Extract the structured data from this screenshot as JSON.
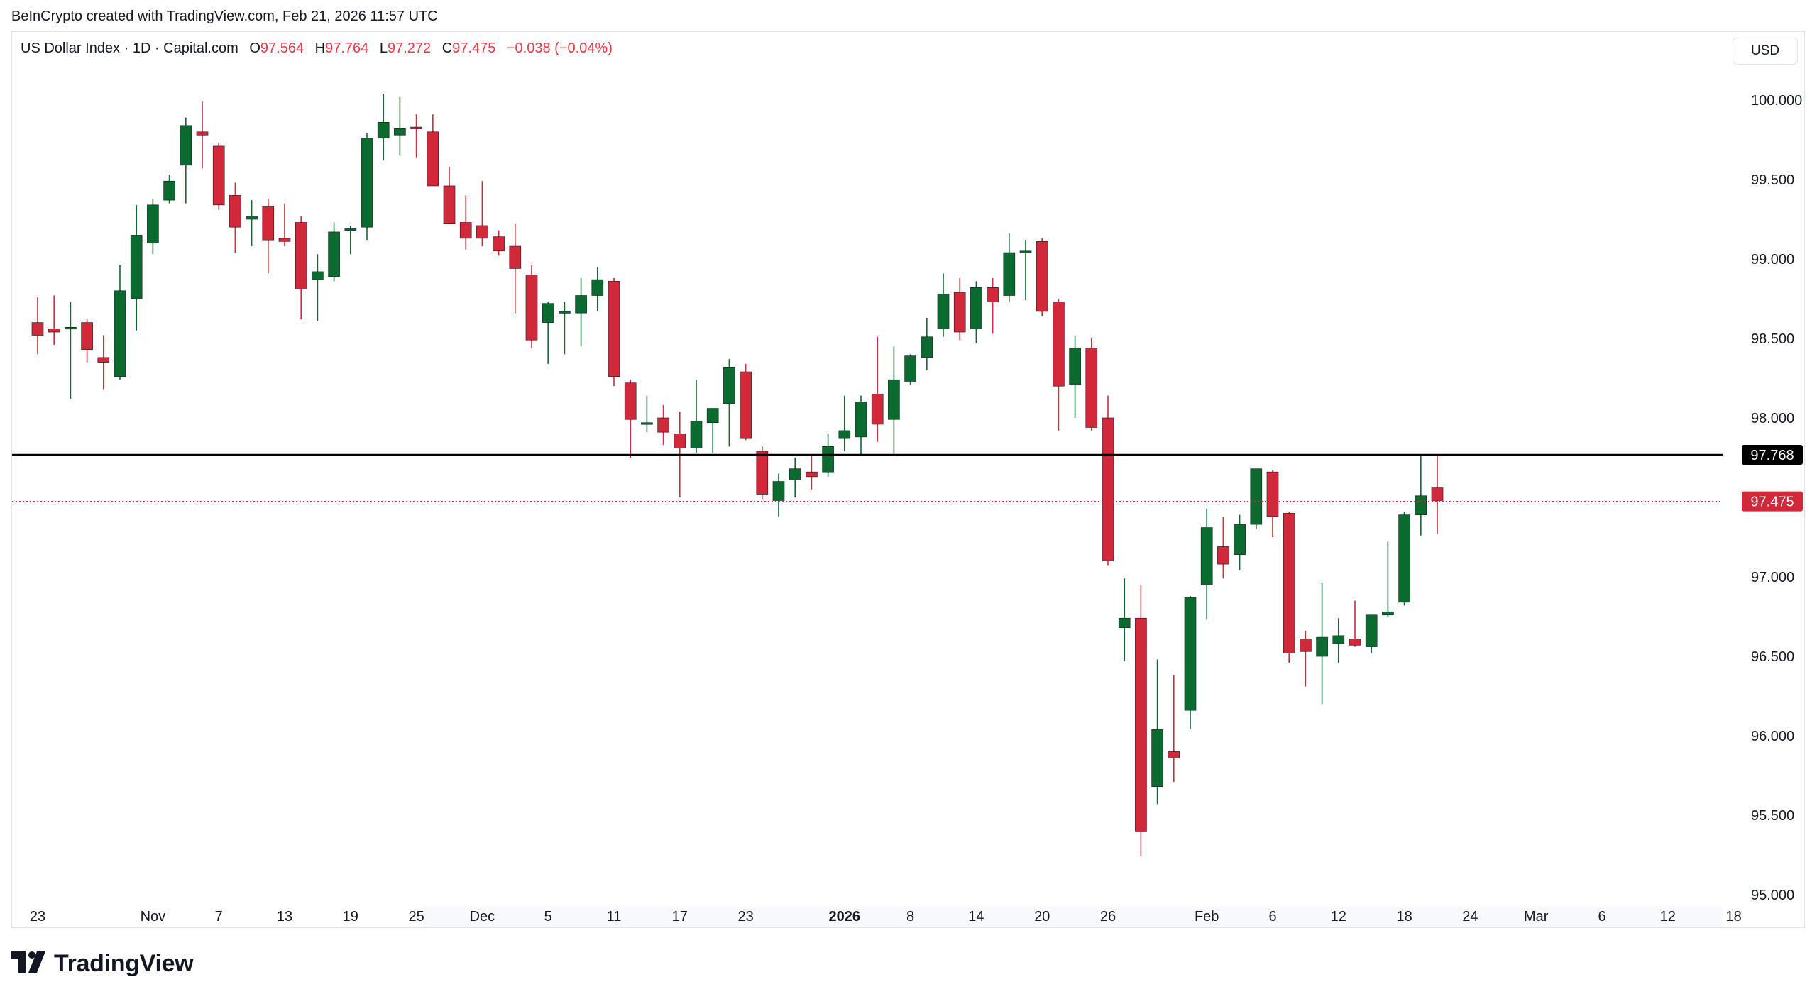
{
  "credit": "BeInCrypto created with TradingView.com, Feb 21, 2026 11:57 UTC",
  "legend": {
    "symbol": "US Dollar Index · 1D · Capital.com",
    "open_label": "O",
    "open": "97.564",
    "high_label": "H",
    "high": "97.764",
    "low_label": "L",
    "low": "97.272",
    "close_label": "C",
    "close": "97.475",
    "change": "−0.038 (−0.04%)"
  },
  "currency_button": "USD",
  "brand": {
    "name": "TradingView",
    "icon": "tradingview-logo-icon"
  },
  "colors": {
    "up": "#0b6b2f",
    "down": "#d1283a",
    "line": "#000000",
    "last_price": "#d1283a",
    "axis_text": "#131722"
  },
  "chart_data": {
    "type": "candlestick",
    "title": "US Dollar Index · 1D · Capital.com",
    "ylabel": "",
    "xlabel": "",
    "ylim": [
      94.6,
      100.5
    ],
    "grid": false,
    "y_ticks": [
      "100.000",
      "99.500",
      "99.000",
      "98.500",
      "98.000",
      "97.000",
      "96.500",
      "96.000",
      "95.500",
      "95.000"
    ],
    "x_ticks": [
      {
        "label": "23",
        "index": 0
      },
      {
        "label": "Nov",
        "index": 7
      },
      {
        "label": "7",
        "index": 11
      },
      {
        "label": "13",
        "index": 15
      },
      {
        "label": "19",
        "index": 19
      },
      {
        "label": "25",
        "index": 23
      },
      {
        "label": "Dec",
        "index": 27
      },
      {
        "label": "5",
        "index": 31
      },
      {
        "label": "11",
        "index": 35
      },
      {
        "label": "17",
        "index": 39
      },
      {
        "label": "23",
        "index": 43
      },
      {
        "label": "2026",
        "index": 49,
        "bold": true
      },
      {
        "label": "8",
        "index": 53
      },
      {
        "label": "14",
        "index": 57
      },
      {
        "label": "20",
        "index": 61
      },
      {
        "label": "26",
        "index": 65
      },
      {
        "label": "Feb",
        "index": 71
      },
      {
        "label": "6",
        "index": 75
      },
      {
        "label": "12",
        "index": 79
      },
      {
        "label": "18",
        "index": 83
      },
      {
        "label": "24",
        "index": 87
      },
      {
        "label": "Mar",
        "index": 91
      },
      {
        "label": "6",
        "index": 95
      },
      {
        "label": "12",
        "index": 99
      },
      {
        "label": "18",
        "index": 103
      }
    ],
    "candles": [
      {
        "o": 98.6,
        "h": 98.76,
        "l": 98.4,
        "c": 98.52
      },
      {
        "o": 98.56,
        "h": 98.77,
        "l": 98.46,
        "c": 98.54
      },
      {
        "o": 98.56,
        "h": 98.73,
        "l": 98.12,
        "c": 98.57
      },
      {
        "o": 98.6,
        "h": 98.62,
        "l": 98.35,
        "c": 98.43
      },
      {
        "o": 98.38,
        "h": 98.52,
        "l": 98.18,
        "c": 98.35
      },
      {
        "o": 98.26,
        "h": 98.96,
        "l": 98.24,
        "c": 98.8
      },
      {
        "o": 98.75,
        "h": 99.34,
        "l": 98.55,
        "c": 99.15
      },
      {
        "o": 99.1,
        "h": 99.38,
        "l": 99.03,
        "c": 99.34
      },
      {
        "o": 99.37,
        "h": 99.53,
        "l": 99.35,
        "c": 99.49
      },
      {
        "o": 99.59,
        "h": 99.89,
        "l": 99.35,
        "c": 99.84
      },
      {
        "o": 99.8,
        "h": 99.99,
        "l": 99.57,
        "c": 99.78
      },
      {
        "o": 99.71,
        "h": 99.73,
        "l": 99.31,
        "c": 99.34
      },
      {
        "o": 99.4,
        "h": 99.48,
        "l": 99.04,
        "c": 99.2
      },
      {
        "o": 99.25,
        "h": 99.37,
        "l": 99.08,
        "c": 99.27
      },
      {
        "o": 99.33,
        "h": 99.38,
        "l": 98.91,
        "c": 99.12
      },
      {
        "o": 99.13,
        "h": 99.35,
        "l": 99.08,
        "c": 99.11
      },
      {
        "o": 99.23,
        "h": 99.27,
        "l": 98.62,
        "c": 98.81
      },
      {
        "o": 98.87,
        "h": 99.03,
        "l": 98.61,
        "c": 98.92
      },
      {
        "o": 98.89,
        "h": 99.23,
        "l": 98.86,
        "c": 99.17
      },
      {
        "o": 99.18,
        "h": 99.21,
        "l": 99.03,
        "c": 99.19
      },
      {
        "o": 99.2,
        "h": 99.79,
        "l": 99.12,
        "c": 99.76
      },
      {
        "o": 99.76,
        "h": 100.04,
        "l": 99.62,
        "c": 99.86
      },
      {
        "o": 99.78,
        "h": 100.02,
        "l": 99.65,
        "c": 99.82
      },
      {
        "o": 99.83,
        "h": 99.91,
        "l": 99.64,
        "c": 99.82
      },
      {
        "o": 99.8,
        "h": 99.91,
        "l": 99.46,
        "c": 99.46
      },
      {
        "o": 99.46,
        "h": 99.58,
        "l": 99.27,
        "c": 99.22
      },
      {
        "o": 99.23,
        "h": 99.4,
        "l": 99.06,
        "c": 99.13
      },
      {
        "o": 99.21,
        "h": 99.49,
        "l": 99.08,
        "c": 99.13
      },
      {
        "o": 99.14,
        "h": 99.18,
        "l": 99.02,
        "c": 99.05
      },
      {
        "o": 99.08,
        "h": 99.22,
        "l": 98.66,
        "c": 98.94
      },
      {
        "o": 98.9,
        "h": 98.96,
        "l": 98.44,
        "c": 98.49
      },
      {
        "o": 98.6,
        "h": 98.73,
        "l": 98.34,
        "c": 98.72
      },
      {
        "o": 98.66,
        "h": 98.73,
        "l": 98.4,
        "c": 98.67
      },
      {
        "o": 98.66,
        "h": 98.88,
        "l": 98.45,
        "c": 98.77
      },
      {
        "o": 98.77,
        "h": 98.95,
        "l": 98.67,
        "c": 98.87
      },
      {
        "o": 98.86,
        "h": 98.88,
        "l": 98.2,
        "c": 98.26
      },
      {
        "o": 98.22,
        "h": 98.24,
        "l": 97.75,
        "c": 97.99
      },
      {
        "o": 97.96,
        "h": 98.14,
        "l": 97.91,
        "c": 97.97
      },
      {
        "o": 98.0,
        "h": 98.08,
        "l": 97.83,
        "c": 97.91
      },
      {
        "o": 97.9,
        "h": 98.04,
        "l": 97.5,
        "c": 97.81
      },
      {
        "o": 97.81,
        "h": 98.24,
        "l": 97.78,
        "c": 97.98
      },
      {
        "o": 97.97,
        "h": 98.04,
        "l": 97.78,
        "c": 98.06
      },
      {
        "o": 98.09,
        "h": 98.37,
        "l": 97.82,
        "c": 98.32
      },
      {
        "o": 98.29,
        "h": 98.34,
        "l": 97.86,
        "c": 97.87
      },
      {
        "o": 97.79,
        "h": 97.82,
        "l": 97.49,
        "c": 97.52
      },
      {
        "o": 97.48,
        "h": 97.65,
        "l": 97.38,
        "c": 97.6
      },
      {
        "o": 97.61,
        "h": 97.75,
        "l": 97.5,
        "c": 97.68
      },
      {
        "o": 97.66,
        "h": 97.77,
        "l": 97.55,
        "c": 97.63
      },
      {
        "o": 97.66,
        "h": 97.9,
        "l": 97.63,
        "c": 97.82
      },
      {
        "o": 97.87,
        "h": 98.14,
        "l": 97.79,
        "c": 97.92
      },
      {
        "o": 97.88,
        "h": 98.14,
        "l": 97.77,
        "c": 98.1
      },
      {
        "o": 98.15,
        "h": 98.51,
        "l": 97.85,
        "c": 97.96
      },
      {
        "o": 97.99,
        "h": 98.45,
        "l": 97.76,
        "c": 98.24
      },
      {
        "o": 98.23,
        "h": 98.4,
        "l": 98.21,
        "c": 98.39
      },
      {
        "o": 98.38,
        "h": 98.63,
        "l": 98.3,
        "c": 98.51
      },
      {
        "o": 98.56,
        "h": 98.91,
        "l": 98.51,
        "c": 98.78
      },
      {
        "o": 98.79,
        "h": 98.88,
        "l": 98.49,
        "c": 98.54
      },
      {
        "o": 98.56,
        "h": 98.86,
        "l": 98.47,
        "c": 98.82
      },
      {
        "o": 98.82,
        "h": 98.88,
        "l": 98.53,
        "c": 98.73
      },
      {
        "o": 98.77,
        "h": 99.16,
        "l": 98.73,
        "c": 99.04
      },
      {
        "o": 99.05,
        "h": 99.12,
        "l": 98.74,
        "c": 99.05
      },
      {
        "o": 99.11,
        "h": 99.13,
        "l": 98.64,
        "c": 98.67
      },
      {
        "o": 98.73,
        "h": 98.75,
        "l": 97.92,
        "c": 98.2
      },
      {
        "o": 98.21,
        "h": 98.52,
        "l": 98.0,
        "c": 98.44
      },
      {
        "o": 98.44,
        "h": 98.5,
        "l": 97.92,
        "c": 97.94
      },
      {
        "o": 98.0,
        "h": 98.14,
        "l": 97.07,
        "c": 97.1
      },
      {
        "o": 96.68,
        "h": 96.99,
        "l": 96.47,
        "c": 96.74
      },
      {
        "o": 96.74,
        "h": 96.95,
        "l": 95.24,
        "c": 95.4
      },
      {
        "o": 95.68,
        "h": 96.48,
        "l": 95.57,
        "c": 96.04
      },
      {
        "o": 95.9,
        "h": 96.38,
        "l": 95.71,
        "c": 95.86
      },
      {
        "o": 96.16,
        "h": 96.88,
        "l": 96.04,
        "c": 96.87
      },
      {
        "o": 96.95,
        "h": 97.43,
        "l": 96.73,
        "c": 97.31
      },
      {
        "o": 97.19,
        "h": 97.38,
        "l": 96.99,
        "c": 97.08
      },
      {
        "o": 97.14,
        "h": 97.39,
        "l": 97.04,
        "c": 97.33
      },
      {
        "o": 97.33,
        "h": 97.68,
        "l": 97.3,
        "c": 97.68
      },
      {
        "o": 97.66,
        "h": 97.67,
        "l": 97.25,
        "c": 97.38
      },
      {
        "o": 97.4,
        "h": 97.41,
        "l": 96.46,
        "c": 96.52
      },
      {
        "o": 96.61,
        "h": 96.66,
        "l": 96.31,
        "c": 96.53
      },
      {
        "o": 96.5,
        "h": 96.96,
        "l": 96.2,
        "c": 96.62
      },
      {
        "o": 96.58,
        "h": 96.74,
        "l": 96.46,
        "c": 96.63
      },
      {
        "o": 96.61,
        "h": 96.85,
        "l": 96.56,
        "c": 96.57
      },
      {
        "o": 96.56,
        "h": 96.76,
        "l": 96.52,
        "c": 96.76
      },
      {
        "o": 96.76,
        "h": 97.22,
        "l": 96.75,
        "c": 96.78
      },
      {
        "o": 96.84,
        "h": 97.41,
        "l": 96.82,
        "c": 97.39
      },
      {
        "o": 97.39,
        "h": 97.76,
        "l": 97.26,
        "c": 97.51
      },
      {
        "o": 97.56,
        "h": 97.76,
        "l": 97.27,
        "c": 97.48
      }
    ],
    "horizontal_line": {
      "value": 97.768,
      "label": "97.768"
    },
    "last_price": {
      "value": 97.475,
      "label": "97.475"
    }
  }
}
